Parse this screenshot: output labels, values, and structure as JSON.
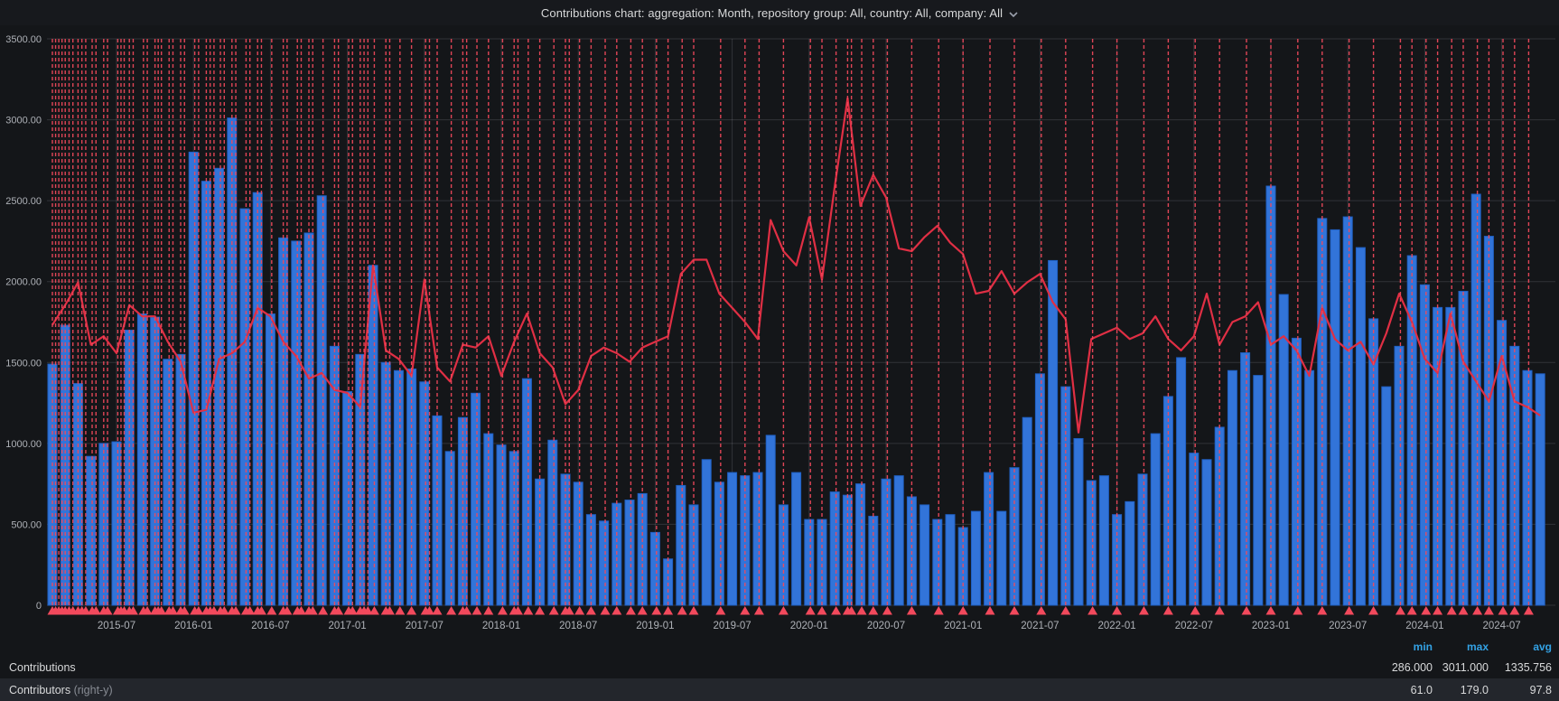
{
  "header": {
    "title": "Contributions chart: aggregation: Month, repository group: All, country: All, company: All",
    "chevron_icon": "chevron-down"
  },
  "colors": {
    "panel_bg": "#141619",
    "header_bg": "#17191d",
    "bar_fill": "#3274d9",
    "bar_border": "#1f60c4",
    "line_stroke": "#e02f44",
    "annotation": "#f2495c",
    "grid": "rgba(204,204,220,0.16)",
    "axis_text": "#aeb1b7",
    "legend_text": "#d8d9da",
    "legend_muted": "#888c94",
    "stats_header_blue": "#33a2e5",
    "row_alt_bg": "#23262c"
  },
  "legend": {
    "columns": [
      "min",
      "max",
      "avg"
    ],
    "rows": [
      {
        "label": "Contributions",
        "suffix": "",
        "min": "286.000",
        "max": "3011.000",
        "avg": "1335.756"
      },
      {
        "label": "Contributors",
        "suffix": "(right-y)",
        "min": "61.0",
        "max": "179.0",
        "avg": "97.8"
      }
    ]
  },
  "chart_data": {
    "type": "bar+line",
    "title": "Contributions chart",
    "x_start_month": "2015-02",
    "x_months_count": 117,
    "x_tick_labels": [
      "2015-07",
      "2016-01",
      "2016-07",
      "2017-01",
      "2017-07",
      "2018-01",
      "2018-07",
      "2019-01",
      "2019-07",
      "2020-01",
      "2020-07",
      "2021-01",
      "2021-07",
      "2022-01",
      "2022-07",
      "2023-01",
      "2023-07",
      "2024-01",
      "2024-07"
    ],
    "x_tick_month_indices": [
      5,
      11,
      17,
      23,
      29,
      35,
      41,
      47,
      53,
      59,
      65,
      71,
      77,
      83,
      89,
      95,
      101,
      107,
      113
    ],
    "y_left": {
      "label": "Contributions",
      "min": 0,
      "max": 3500,
      "tick_labels": [
        "3500.00",
        "3000.00",
        "2500.00",
        "2000.00",
        "1500.00",
        "1000.00",
        "500.00",
        "0"
      ]
    },
    "y_right": {
      "label": "Contributors",
      "min": 0,
      "max": 200,
      "axis_hidden": true
    },
    "grid": true,
    "legend_position": "bottom-table",
    "series": [
      {
        "name": "Contributions",
        "type": "bar",
        "axis": "left",
        "values": [
          1490,
          1730,
          1370,
          920,
          1000,
          1010,
          1700,
          1800,
          1780,
          1520,
          1550,
          2800,
          2620,
          2700,
          3011,
          2450,
          2550,
          1800,
          2270,
          2250,
          2300,
          2530,
          1600,
          1320,
          1550,
          2100,
          1500,
          1450,
          1460,
          1380,
          1170,
          950,
          1160,
          1310,
          1060,
          990,
          950,
          1400,
          780,
          1020,
          810,
          760,
          560,
          520,
          630,
          650,
          690,
          450,
          286,
          740,
          620,
          900,
          760,
          820,
          800,
          820,
          1050,
          620,
          820,
          530,
          530,
          700,
          680,
          750,
          550,
          780,
          800,
          670,
          620,
          530,
          560,
          480,
          580,
          820,
          580,
          850,
          1160,
          1430,
          2130,
          1350,
          1030,
          770,
          800,
          560,
          640,
          810,
          1060,
          1290,
          1530,
          940,
          900,
          1100,
          1450,
          1560,
          1420,
          2590,
          1920,
          1650,
          1450,
          2390,
          2320,
          2400,
          2210,
          1770,
          1350,
          1600,
          2160,
          1980,
          1840,
          1840,
          1940,
          2540,
          2280,
          1760,
          1600,
          1450,
          1430
        ]
      },
      {
        "name": "Contributors",
        "type": "line",
        "axis": "right",
        "values": [
          99,
          106,
          114,
          92,
          95,
          89,
          106,
          102,
          102,
          93,
          86,
          68,
          69,
          87,
          89,
          93,
          105,
          102,
          93,
          88,
          80,
          82,
          76,
          75,
          70,
          120,
          90,
          87,
          81,
          115,
          84,
          79,
          92,
          91,
          95,
          81,
          93,
          103,
          89,
          84,
          71,
          76,
          88,
          91,
          89,
          86,
          91,
          93,
          95,
          117,
          122,
          122,
          110,
          105,
          100,
          94,
          136,
          125,
          120,
          137,
          115,
          148,
          179,
          141,
          152,
          144,
          126,
          125,
          130,
          134,
          128,
          124,
          110,
          111,
          118,
          110,
          114,
          117,
          107,
          101,
          61,
          94,
          96,
          98,
          94,
          96,
          102,
          94,
          90,
          95,
          110,
          92,
          100,
          102,
          107,
          92,
          95,
          90,
          81,
          105,
          94,
          90,
          93,
          85,
          96,
          110,
          100,
          87,
          82,
          103,
          86,
          79,
          72,
          88,
          72,
          70,
          67
        ]
      }
    ],
    "annotations_month_offsets": [
      0,
      0.25,
      0.5,
      0.75,
      1,
      1.3,
      1.6,
      2,
      2.3,
      2.6,
      3.1,
      3.4,
      4,
      4.3,
      5.1,
      5.35,
      5.6,
      6,
      6.3,
      7.1,
      7.4,
      8,
      8.25,
      8.5,
      9.1,
      9.4,
      10,
      10.3,
      11.1,
      11.4,
      12,
      12.3,
      12.6,
      13.1,
      13.4,
      14,
      14.3,
      15.1,
      15.4,
      16,
      16.3,
      17.1,
      18,
      18.3,
      19.1,
      19.4,
      20,
      20.3,
      21.1,
      22,
      22.3,
      23.1,
      23.4,
      24,
      24.3,
      24.6,
      25.1,
      26,
      26.3,
      27.1,
      28,
      29.1,
      29.4,
      30,
      31.1,
      32,
      32.3,
      33.1,
      34,
      35.1,
      36,
      36.3,
      37.1,
      38,
      39.1,
      40,
      40.3,
      41.1,
      42,
      43.1,
      44,
      45.1,
      46,
      47.1,
      48,
      49.1,
      50,
      52.1,
      54,
      55.1,
      57,
      59.1,
      60,
      61.1,
      62,
      62.3,
      63.1,
      64,
      65.1,
      67,
      69.1,
      71,
      73.1,
      75,
      77.1,
      79,
      81.1,
      83,
      85.1,
      87,
      89.1,
      91,
      93.1,
      95,
      97.1,
      99,
      101.1,
      103,
      105.1,
      106,
      107.1,
      108,
      109.1,
      110,
      111.1,
      112,
      113.1,
      114,
      115.1
    ]
  }
}
